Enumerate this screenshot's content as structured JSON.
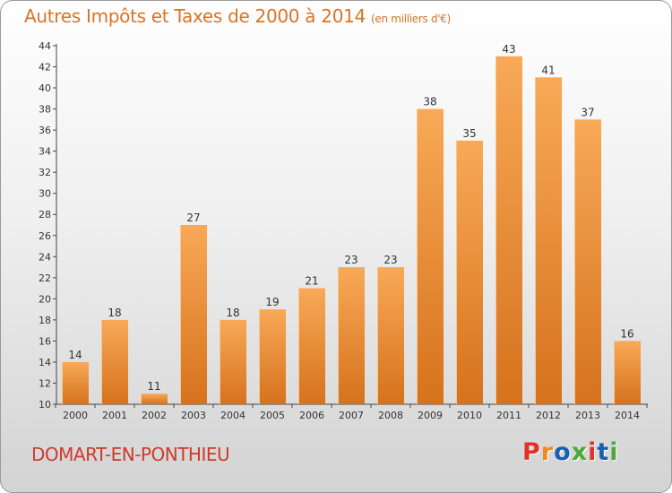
{
  "header": {
    "title": "Autres Impôts et Taxes de 2000 à 2014",
    "unit": "(en milliers d'€)"
  },
  "footer": {
    "commune": "DOMART-EN-PONTHIEU",
    "logo_text": "Proxiti",
    "logo_colors": [
      "#e2302a",
      "#f08a1c",
      "#1a5fb0",
      "#4da83a",
      "#e2302a",
      "#1a5fb0",
      "#4da83a"
    ]
  },
  "colors": {
    "bar_light": "#f8a957",
    "bar_dark": "#d6721d",
    "text": "#333333",
    "title": "#d87326"
  },
  "chart_data": {
    "type": "bar",
    "title": "Autres Impôts et Taxes de 2000 à 2014",
    "subtitle": "(en milliers d'€)",
    "categories": [
      "2000",
      "2001",
      "2002",
      "2003",
      "2004",
      "2005",
      "2006",
      "2007",
      "2008",
      "2009",
      "2010",
      "2011",
      "2012",
      "2013",
      "2014"
    ],
    "values": [
      14,
      18,
      11,
      27,
      18,
      19,
      21,
      23,
      23,
      38,
      35,
      43,
      41,
      37,
      16
    ],
    "ylim": [
      10,
      44
    ],
    "yticks": [
      10,
      12,
      14,
      16,
      18,
      20,
      22,
      24,
      26,
      28,
      30,
      32,
      34,
      36,
      38,
      40,
      42,
      44
    ],
    "grid": false,
    "show_data_labels": true
  }
}
